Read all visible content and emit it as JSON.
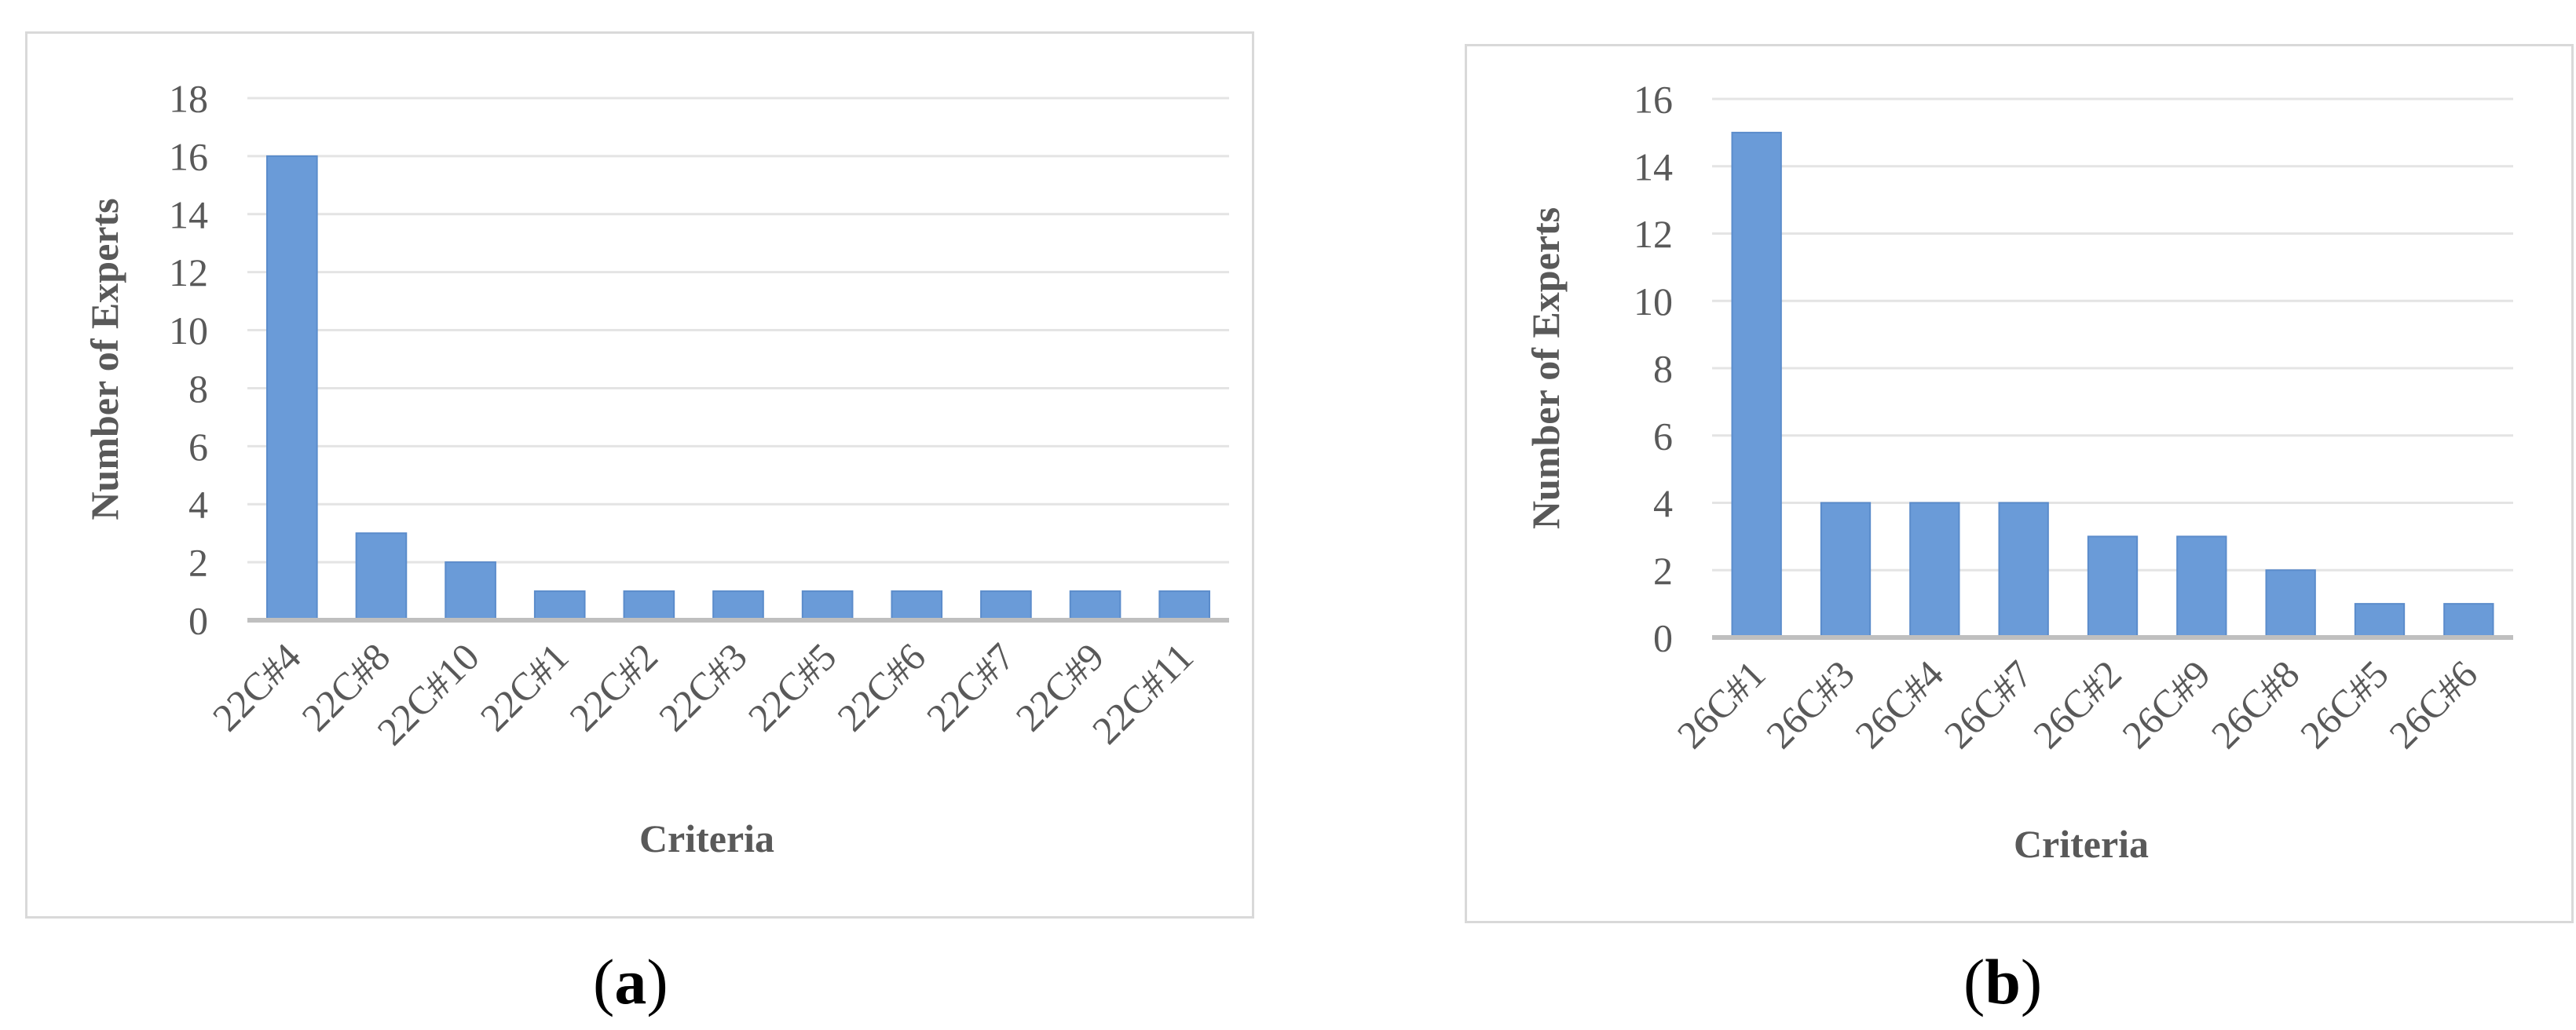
{
  "chart_data": [
    {
      "type": "bar",
      "panel_label": "a",
      "categories": [
        "22C#4",
        "22C#8",
        "22C#10",
        "22C#1",
        "22C#2",
        "22C#3",
        "22C#5",
        "22C#6",
        "22C#7",
        "22C#9",
        "22C#11"
      ],
      "values": [
        16,
        3,
        2,
        1,
        1,
        1,
        1,
        1,
        1,
        1,
        1
      ],
      "ylim": [
        0,
        18
      ],
      "yticks": [
        0,
        2,
        4,
        6,
        8,
        10,
        12,
        14,
        16,
        18
      ],
      "xlabel": "Criteria",
      "ylabel": "Number of Experts",
      "bar_color": "#6a9bd8",
      "grid": true
    },
    {
      "type": "bar",
      "panel_label": "b",
      "categories": [
        "26C#1",
        "26C#3",
        "26C#4",
        "26C#7",
        "26C#2",
        "26C#9",
        "26C#8",
        "26C#5",
        "26C#6"
      ],
      "values": [
        15,
        4,
        4,
        4,
        3,
        3,
        2,
        1,
        1
      ],
      "ylim": [
        0,
        16
      ],
      "yticks": [
        0,
        2,
        4,
        6,
        8,
        10,
        12,
        14,
        16
      ],
      "xlabel": "Criteria",
      "ylabel": "Number of Experts",
      "bar_color": "#6a9bd8",
      "grid": true
    }
  ]
}
